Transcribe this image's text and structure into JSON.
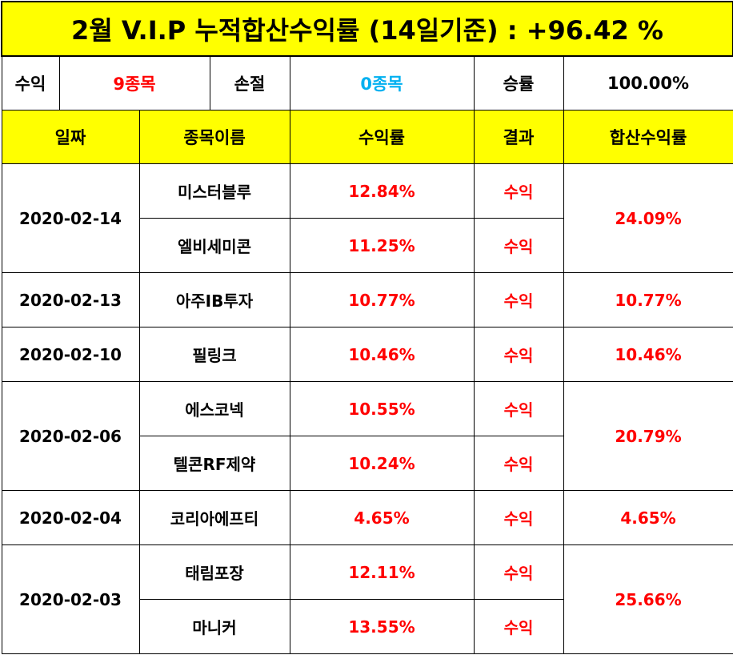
{
  "title": "2월 V.I.P 누적합산수익률 (14일기준) : +96.42 %",
  "summary": {
    "profit_label": "수익",
    "profit_value": "9종목",
    "loss_label": "손절",
    "loss_value": "0종목",
    "win_label": "승률",
    "win_value": "100.00%"
  },
  "headers": [
    "일짜",
    "종목이름",
    "수익률",
    "결과",
    "합산수익률"
  ],
  "groups": [
    {
      "date": "2020-02-14",
      "total": "24.09%",
      "rows": [
        {
          "name": "미스터블루",
          "rate": "12.84%",
          "result": "수익"
        },
        {
          "name": "엘비세미콘",
          "rate": "11.25%",
          "result": "수익"
        }
      ]
    },
    {
      "date": "2020-02-13",
      "total": "10.77%",
      "rows": [
        {
          "name": "아주IB투자",
          "rate": "10.77%",
          "result": "수익"
        }
      ]
    },
    {
      "date": "2020-02-10",
      "total": "10.46%",
      "rows": [
        {
          "name": "필링크",
          "rate": "10.46%",
          "result": "수익"
        }
      ]
    },
    {
      "date": "2020-02-06",
      "total": "20.79%",
      "rows": [
        {
          "name": "에스코넥",
          "rate": "10.55%",
          "result": "수익"
        },
        {
          "name": "텔콘RF제약",
          "rate": "10.24%",
          "result": "수익"
        }
      ]
    },
    {
      "date": "2020-02-04",
      "total": "4.65%",
      "rows": [
        {
          "name": "코리아에프티",
          "rate": "4.65%",
          "result": "수익"
        }
      ]
    },
    {
      "date": "2020-02-03",
      "total": "25.66%",
      "rows": [
        {
          "name": "태림포장",
          "rate": "12.11%",
          "result": "수익"
        },
        {
          "name": "마니커",
          "rate": "13.55%",
          "result": "수익"
        }
      ]
    }
  ],
  "colors": {
    "header_bg": "#ffff00",
    "profit_text": "#ff0000",
    "loss_text": "#00b0f0"
  }
}
